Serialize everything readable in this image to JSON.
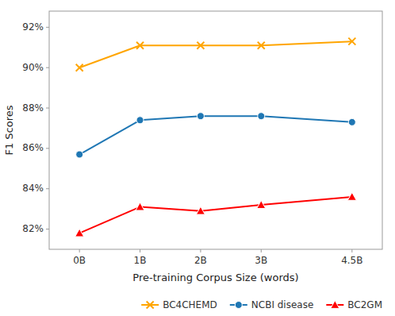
{
  "chart_data": {
    "type": "line",
    "xlabel": "Pre-training Corpus Size (words)",
    "ylabel": "F1 Scores",
    "x": [
      0,
      1,
      2,
      3,
      4.5
    ],
    "xlim": [
      -0.5,
      5
    ],
    "xticks": [
      {
        "value": 0,
        "label": "0B"
      },
      {
        "value": 1,
        "label": "1B"
      },
      {
        "value": 2,
        "label": "2B"
      },
      {
        "value": 3,
        "label": "3B"
      },
      {
        "value": 4.5,
        "label": "4.5B"
      }
    ],
    "ylim": [
      81.0,
      92.8
    ],
    "yticks": [
      {
        "value": 82,
        "label": "82%"
      },
      {
        "value": 84,
        "label": "84%"
      },
      {
        "value": 86,
        "label": "86%"
      },
      {
        "value": 88,
        "label": "88%"
      },
      {
        "value": 90,
        "label": "90%"
      },
      {
        "value": 92,
        "label": "92%"
      }
    ],
    "grid": false,
    "legend": "lower right",
    "series": [
      {
        "name": "BC4CHEMD",
        "color": "#FFA500",
        "marker": "x",
        "values": [
          90.0,
          91.1,
          91.1,
          91.1,
          91.3
        ]
      },
      {
        "name": "NCBI disease",
        "color": "#1F77B4",
        "marker": "circle",
        "values": [
          85.7,
          87.4,
          87.6,
          87.6,
          87.3
        ]
      },
      {
        "name": "BC2GM",
        "color": "#FF0000",
        "marker": "triangle",
        "values": [
          81.8,
          83.1,
          82.9,
          83.2,
          83.6
        ]
      }
    ]
  }
}
